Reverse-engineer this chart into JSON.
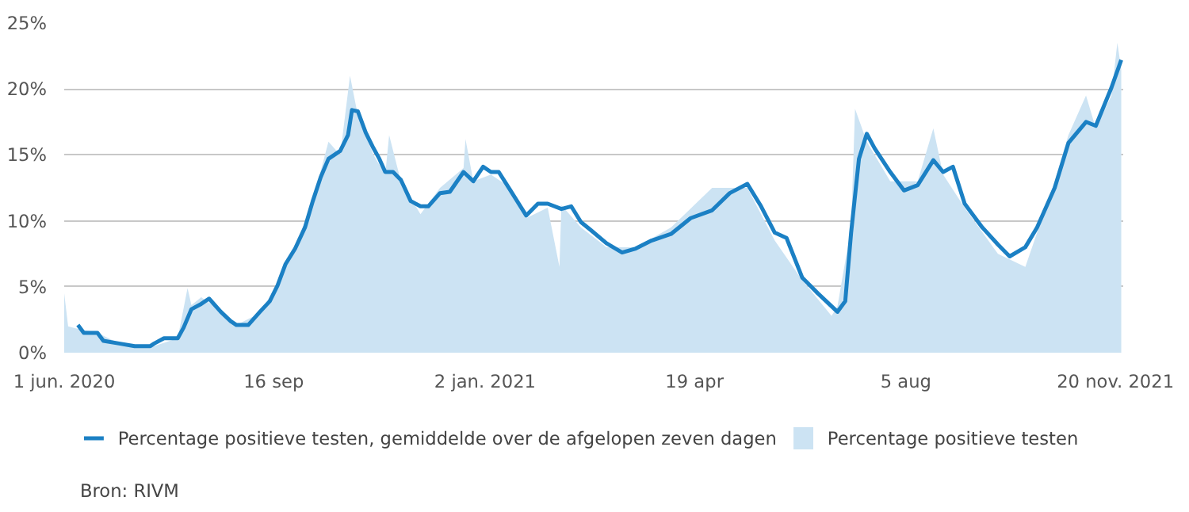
{
  "chart_data": {
    "type": "line",
    "x": [
      "2020-06-08",
      "2020-06-11",
      "2020-06-18",
      "2020-06-21",
      "2020-06-29",
      "2020-07-07",
      "2020-07-15",
      "2020-07-17",
      "2020-07-22",
      "2020-07-29",
      "2020-08-01",
      "2020-08-05",
      "2020-08-10",
      "2020-08-14",
      "2020-08-20",
      "2020-08-25",
      "2020-08-28",
      "2020-09-03",
      "2020-09-09",
      "2020-09-14",
      "2020-09-18",
      "2020-09-22",
      "2020-09-27",
      "2020-10-02",
      "2020-10-06",
      "2020-10-10",
      "2020-10-14",
      "2020-10-17",
      "2020-10-20",
      "2020-10-24",
      "2020-10-26",
      "2020-10-29",
      "2020-11-02",
      "2020-11-06",
      "2020-11-09",
      "2020-11-12",
      "2020-11-16",
      "2020-11-20",
      "2020-11-25",
      "2020-11-30",
      "2020-12-04",
      "2020-12-10",
      "2020-12-15",
      "2020-12-22",
      "2020-12-27",
      "2021-01-01",
      "2021-01-05",
      "2021-01-09",
      "2021-01-15",
      "2021-01-23",
      "2021-01-29",
      "2021-02-03",
      "2021-02-10",
      "2021-02-15",
      "2021-02-20",
      "2021-02-25",
      "2021-03-05",
      "2021-03-13",
      "2021-03-20",
      "2021-03-28",
      "2021-04-07",
      "2021-04-17",
      "2021-04-28",
      "2021-05-07",
      "2021-05-16",
      "2021-05-23",
      "2021-05-30",
      "2021-06-05",
      "2021-06-13",
      "2021-06-21",
      "2021-07-01",
      "2021-07-05",
      "2021-07-08",
      "2021-07-12",
      "2021-07-16",
      "2021-07-20",
      "2021-07-28",
      "2021-08-04",
      "2021-08-11",
      "2021-08-19",
      "2021-08-24",
      "2021-08-29",
      "2021-09-04",
      "2021-09-13",
      "2021-09-21",
      "2021-09-27",
      "2021-10-05",
      "2021-10-11",
      "2021-10-20",
      "2021-10-27",
      "2021-11-05",
      "2021-11-10",
      "2021-11-18",
      "2021-11-23"
    ],
    "series": [
      {
        "type": "area",
        "name": "Percentage positieve testen",
        "color": "#cce3f3",
        "x": [
          "2020-06-01",
          "2020-06-03",
          "2020-06-08",
          "2020-06-18",
          "2020-06-29",
          "2020-07-15",
          "2020-07-29",
          "2020-08-03",
          "2020-08-05",
          "2020-08-10",
          "2020-08-20",
          "2020-08-28",
          "2020-09-09",
          "2020-09-18",
          "2020-09-27",
          "2020-10-06",
          "2020-10-14",
          "2020-10-20",
          "2020-10-25",
          "2020-10-29",
          "2020-11-06",
          "2020-11-12",
          "2020-11-14",
          "2020-11-20",
          "2020-11-30",
          "2020-12-10",
          "2020-12-22",
          "2020-12-23",
          "2020-12-27",
          "2021-01-05",
          "2021-01-15",
          "2021-01-23",
          "2021-02-03",
          "2021-02-09",
          "2021-02-10",
          "2021-02-20",
          "2021-03-05",
          "2021-03-20",
          "2021-04-07",
          "2021-04-28",
          "2021-05-16",
          "2021-05-30",
          "2021-06-13",
          "2021-06-28",
          "2021-07-01",
          "2021-07-08",
          "2021-07-10",
          "2021-07-16",
          "2021-07-28",
          "2021-08-11",
          "2021-08-19",
          "2021-08-24",
          "2021-09-04",
          "2021-09-21",
          "2021-10-05",
          "2021-10-20",
          "2021-10-27",
          "2021-11-05",
          "2021-11-10",
          "2021-11-18",
          "2021-11-21",
          "2021-11-23"
        ],
        "values": [
          4.5,
          2.0,
          1.8,
          1.5,
          0.7,
          0.4,
          1.1,
          4.9,
          3.6,
          4.2,
          3.2,
          2.1,
          3.0,
          5.2,
          8.0,
          11.5,
          16.0,
          15.0,
          21.0,
          18.0,
          15.0,
          13.5,
          16.5,
          13.0,
          10.5,
          12.5,
          14.0,
          16.2,
          13.0,
          13.5,
          12.5,
          10.2,
          11.0,
          6.5,
          11.2,
          9.5,
          8.0,
          8.0,
          9.5,
          12.5,
          12.5,
          8.5,
          5.5,
          2.8,
          3.5,
          9.5,
          18.5,
          16.0,
          13.0,
          13.0,
          17.0,
          13.5,
          11.0,
          7.5,
          6.5,
          13.0,
          16.5,
          19.5,
          17.0,
          19.5,
          23.5,
          21.5
        ]
      },
      {
        "name": "Percentage positieve testen, gemiddelde over de afgelopen zeven dagen",
        "color": "#1b80c4",
        "values": [
          2.1,
          1.5,
          1.5,
          0.9,
          0.7,
          0.5,
          0.5,
          0.7,
          1.1,
          1.1,
          1.9,
          3.3,
          3.7,
          4.1,
          3.1,
          2.4,
          2.1,
          2.1,
          3.1,
          3.9,
          5.1,
          6.7,
          7.9,
          9.5,
          11.5,
          13.3,
          14.7,
          15.0,
          15.3,
          16.5,
          18.4,
          18.3,
          16.7,
          15.5,
          14.7,
          13.7,
          13.7,
          13.1,
          11.5,
          11.1,
          11.1,
          12.1,
          12.2,
          13.7,
          13.0,
          14.1,
          13.7,
          13.7,
          12.3,
          10.4,
          11.3,
          11.3,
          10.9,
          11.1,
          9.9,
          9.3,
          8.3,
          7.6,
          7.9,
          8.5,
          9.0,
          10.2,
          10.8,
          12.1,
          12.8,
          11.1,
          9.1,
          8.7,
          5.7,
          4.5,
          3.1,
          3.9,
          9.1,
          14.7,
          16.6,
          15.5,
          13.7,
          12.3,
          12.7,
          14.6,
          13.7,
          14.1,
          11.3,
          9.5,
          8.2,
          7.3,
          8.0,
          9.5,
          12.5,
          15.9,
          17.5,
          17.2,
          20.1,
          22.2
        ]
      }
    ],
    "xlim": [
      "2020-06-01",
      "2021-11-24"
    ],
    "ylim": [
      0,
      25
    ],
    "xticks": [
      {
        "value": "2020-06-01",
        "label": "1 jun. 2020"
      },
      {
        "value": "2020-09-16",
        "label": "16 sep"
      },
      {
        "value": "2021-01-02",
        "label": "2 jan. 2021"
      },
      {
        "value": "2021-04-19",
        "label": "19 apr"
      },
      {
        "value": "2021-08-05",
        "label": "5 aug"
      },
      {
        "value": "2021-11-20",
        "label": "20 nov. 2021"
      }
    ],
    "yticks": [
      {
        "value": 0,
        "label": "0%"
      },
      {
        "value": 5,
        "label": "5%"
      },
      {
        "value": 10,
        "label": "10%"
      },
      {
        "value": 15,
        "label": "15%"
      },
      {
        "value": 20,
        "label": "20%"
      },
      {
        "value": 25,
        "label": "25%"
      }
    ],
    "grid": "y",
    "legend": "bottom",
    "annotations": [
      "Bron: RIVM"
    ]
  }
}
